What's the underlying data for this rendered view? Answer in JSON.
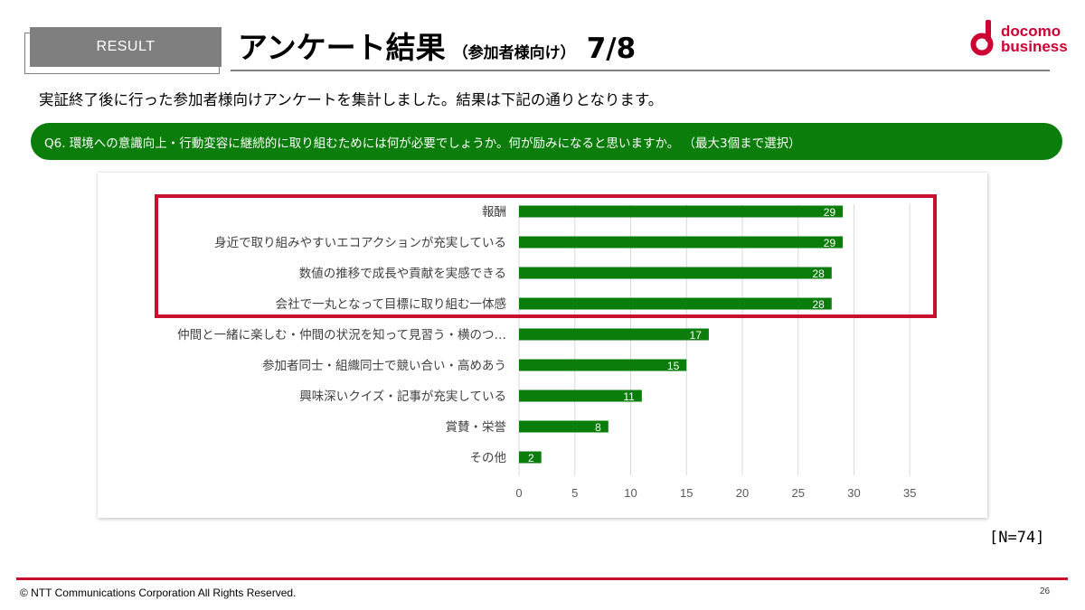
{
  "header": {
    "tag": "RESULT",
    "title": "アンケート結果",
    "subtitle": "（参加者様向け）",
    "page": "7/8"
  },
  "logo": {
    "line1": "docomo",
    "line2": "business",
    "icon": "docomo-d-icon",
    "color": "#cc0033"
  },
  "intro": "実証終了後に行った参加者様向けアンケートを集計しました。結果は下記の通りとなります。",
  "question": "Q6. 環境への意識向上・行動変容に継続的に取り組むためには何が必要でしょうか。何が励みになると思いますか。 （最大3個まで選択）",
  "sample_size": "[N=74]",
  "footer": {
    "copyright": "© NTT Communications Corporation All Rights Reserved.",
    "page_number": "26"
  },
  "colors": {
    "bar": "#0b7d0b",
    "highlight": "#c8102e",
    "question_bg": "#0b7d0b",
    "tag_bg": "#7f7f7f"
  },
  "chart_data": {
    "type": "bar",
    "orientation": "horizontal",
    "categories": [
      "報酬",
      "身近で取り組みやすいエコアクションが充実している",
      "数値の推移で成長や貢献を実感できる",
      "会社で一丸となって目標に取り組む一体感",
      "仲間と一緒に楽しむ・仲間の状況を知って見習う・横のつ…",
      "参加者同士・組織同士で競い合い・高めあう",
      "興味深いクイズ・記事が充実している",
      "賞賛・栄誉",
      "その他"
    ],
    "values": [
      29,
      29,
      28,
      28,
      17,
      15,
      11,
      8,
      2
    ],
    "xlim": [
      0,
      35
    ],
    "xticks": [
      0,
      5,
      10,
      15,
      20,
      25,
      30,
      35
    ],
    "grid": true,
    "data_labels": true,
    "highlighted_categories": 4
  }
}
